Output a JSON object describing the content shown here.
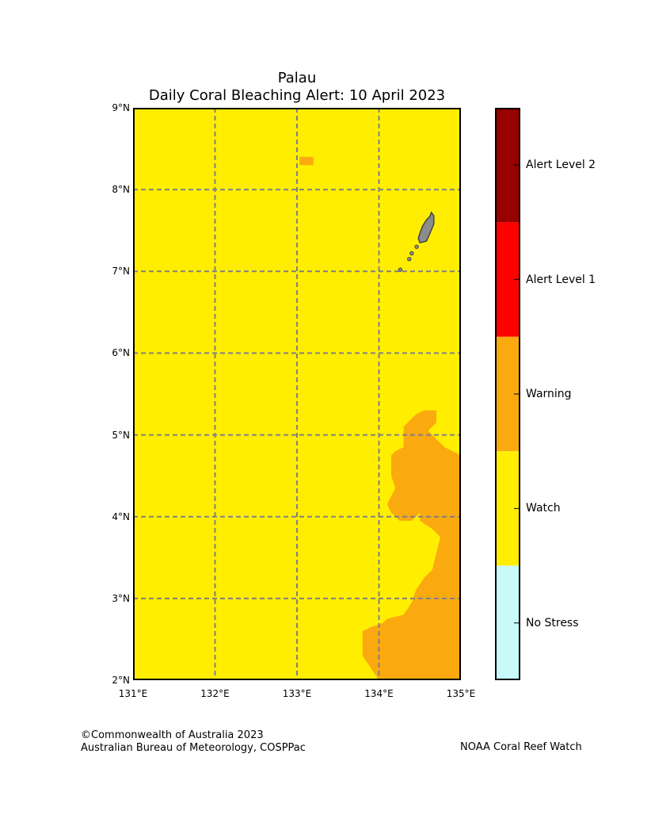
{
  "title": {
    "line1": "Palau",
    "line2": "Daily Coral Bleaching Alert: 10 April 2023"
  },
  "map": {
    "lon_range": [
      131,
      135
    ],
    "lat_range": [
      2,
      9
    ],
    "lat_ticks": [
      {
        "value": 9,
        "label": "9°N"
      },
      {
        "value": 8,
        "label": "8°N"
      },
      {
        "value": 7,
        "label": "7°N"
      },
      {
        "value": 6,
        "label": "6°N"
      },
      {
        "value": 5,
        "label": "5°N"
      },
      {
        "value": 4,
        "label": "4°N"
      },
      {
        "value": 3,
        "label": "3°N"
      },
      {
        "value": 2,
        "label": "2°N"
      }
    ],
    "lon_ticks": [
      {
        "value": 131,
        "label": "131°E"
      },
      {
        "value": 132,
        "label": "132°E"
      },
      {
        "value": 133,
        "label": "133°E"
      },
      {
        "value": 134,
        "label": "134°E"
      },
      {
        "value": 135,
        "label": "135°E"
      }
    ],
    "gridlines": "dashed",
    "background_level": "Watch",
    "warning_region": {
      "level": "Warning",
      "outline_lonlat": [
        [
          135.0,
          4.75
        ],
        [
          134.9,
          4.8
        ],
        [
          134.8,
          4.85
        ],
        [
          134.7,
          4.95
        ],
        [
          134.6,
          5.05
        ],
        [
          134.7,
          5.15
        ],
        [
          134.7,
          5.3
        ],
        [
          134.55,
          5.3
        ],
        [
          134.45,
          5.25
        ],
        [
          134.35,
          5.15
        ],
        [
          134.3,
          5.1
        ],
        [
          134.3,
          4.85
        ],
        [
          134.2,
          4.8
        ],
        [
          134.15,
          4.75
        ],
        [
          134.15,
          4.5
        ],
        [
          134.2,
          4.35
        ],
        [
          134.15,
          4.25
        ],
        [
          134.1,
          4.15
        ],
        [
          134.15,
          4.05
        ],
        [
          134.25,
          3.95
        ],
        [
          134.4,
          3.95
        ],
        [
          134.5,
          4.05
        ],
        [
          134.5,
          3.95
        ],
        [
          134.65,
          3.85
        ],
        [
          134.75,
          3.75
        ],
        [
          134.7,
          3.55
        ],
        [
          134.65,
          3.35
        ],
        [
          134.55,
          3.25
        ],
        [
          134.45,
          3.1
        ],
        [
          134.4,
          2.95
        ],
        [
          134.3,
          2.8
        ],
        [
          134.1,
          2.75
        ],
        [
          134.05,
          2.7
        ],
        [
          133.9,
          2.65
        ],
        [
          133.8,
          2.6
        ],
        [
          133.8,
          2.3
        ],
        [
          133.9,
          2.15
        ],
        [
          134.0,
          2.0
        ],
        [
          135.0,
          2.0
        ]
      ],
      "patches_lonlat": [
        {
          "lon": [
            133.03,
            133.2
          ],
          "lat": [
            8.3,
            8.4
          ]
        }
      ]
    },
    "land": {
      "name": "Palau",
      "fill": "#8c8c8c",
      "outline_lonlat": [
        [
          134.64,
          7.72
        ],
        [
          134.67,
          7.68
        ],
        [
          134.67,
          7.58
        ],
        [
          134.62,
          7.46
        ],
        [
          134.58,
          7.37
        ],
        [
          134.5,
          7.35
        ],
        [
          134.48,
          7.4
        ],
        [
          134.5,
          7.47
        ],
        [
          134.53,
          7.55
        ],
        [
          134.58,
          7.63
        ],
        [
          134.62,
          7.67
        ]
      ],
      "islets_lonlat": [
        {
          "lon": 134.46,
          "lat": 7.3
        },
        {
          "lon": 134.4,
          "lat": 7.22
        },
        {
          "lon": 134.37,
          "lat": 7.15
        },
        {
          "lon": 134.26,
          "lat": 7.02
        }
      ]
    }
  },
  "legend": {
    "colorbar": [
      {
        "label": "Alert Level 2",
        "color": "#990000"
      },
      {
        "label": "Alert Level 1",
        "color": "#ff0000"
      },
      {
        "label": "Warning",
        "color": "#faa90f"
      },
      {
        "label": "Watch",
        "color": "#ffee00"
      },
      {
        "label": "No Stress",
        "color": "#c8fafa"
      }
    ]
  },
  "colors": {
    "watch": "#ffee00",
    "warning": "#faa90f",
    "grid": "#808080",
    "land": "#8c8c8c",
    "land_outline": "#444444"
  },
  "footer": {
    "left_line1": "©Commonwealth of Australia 2023",
    "left_line2": "Australian Bureau of Meteorology, COSPPac",
    "right": "NOAA Coral Reef Watch"
  }
}
